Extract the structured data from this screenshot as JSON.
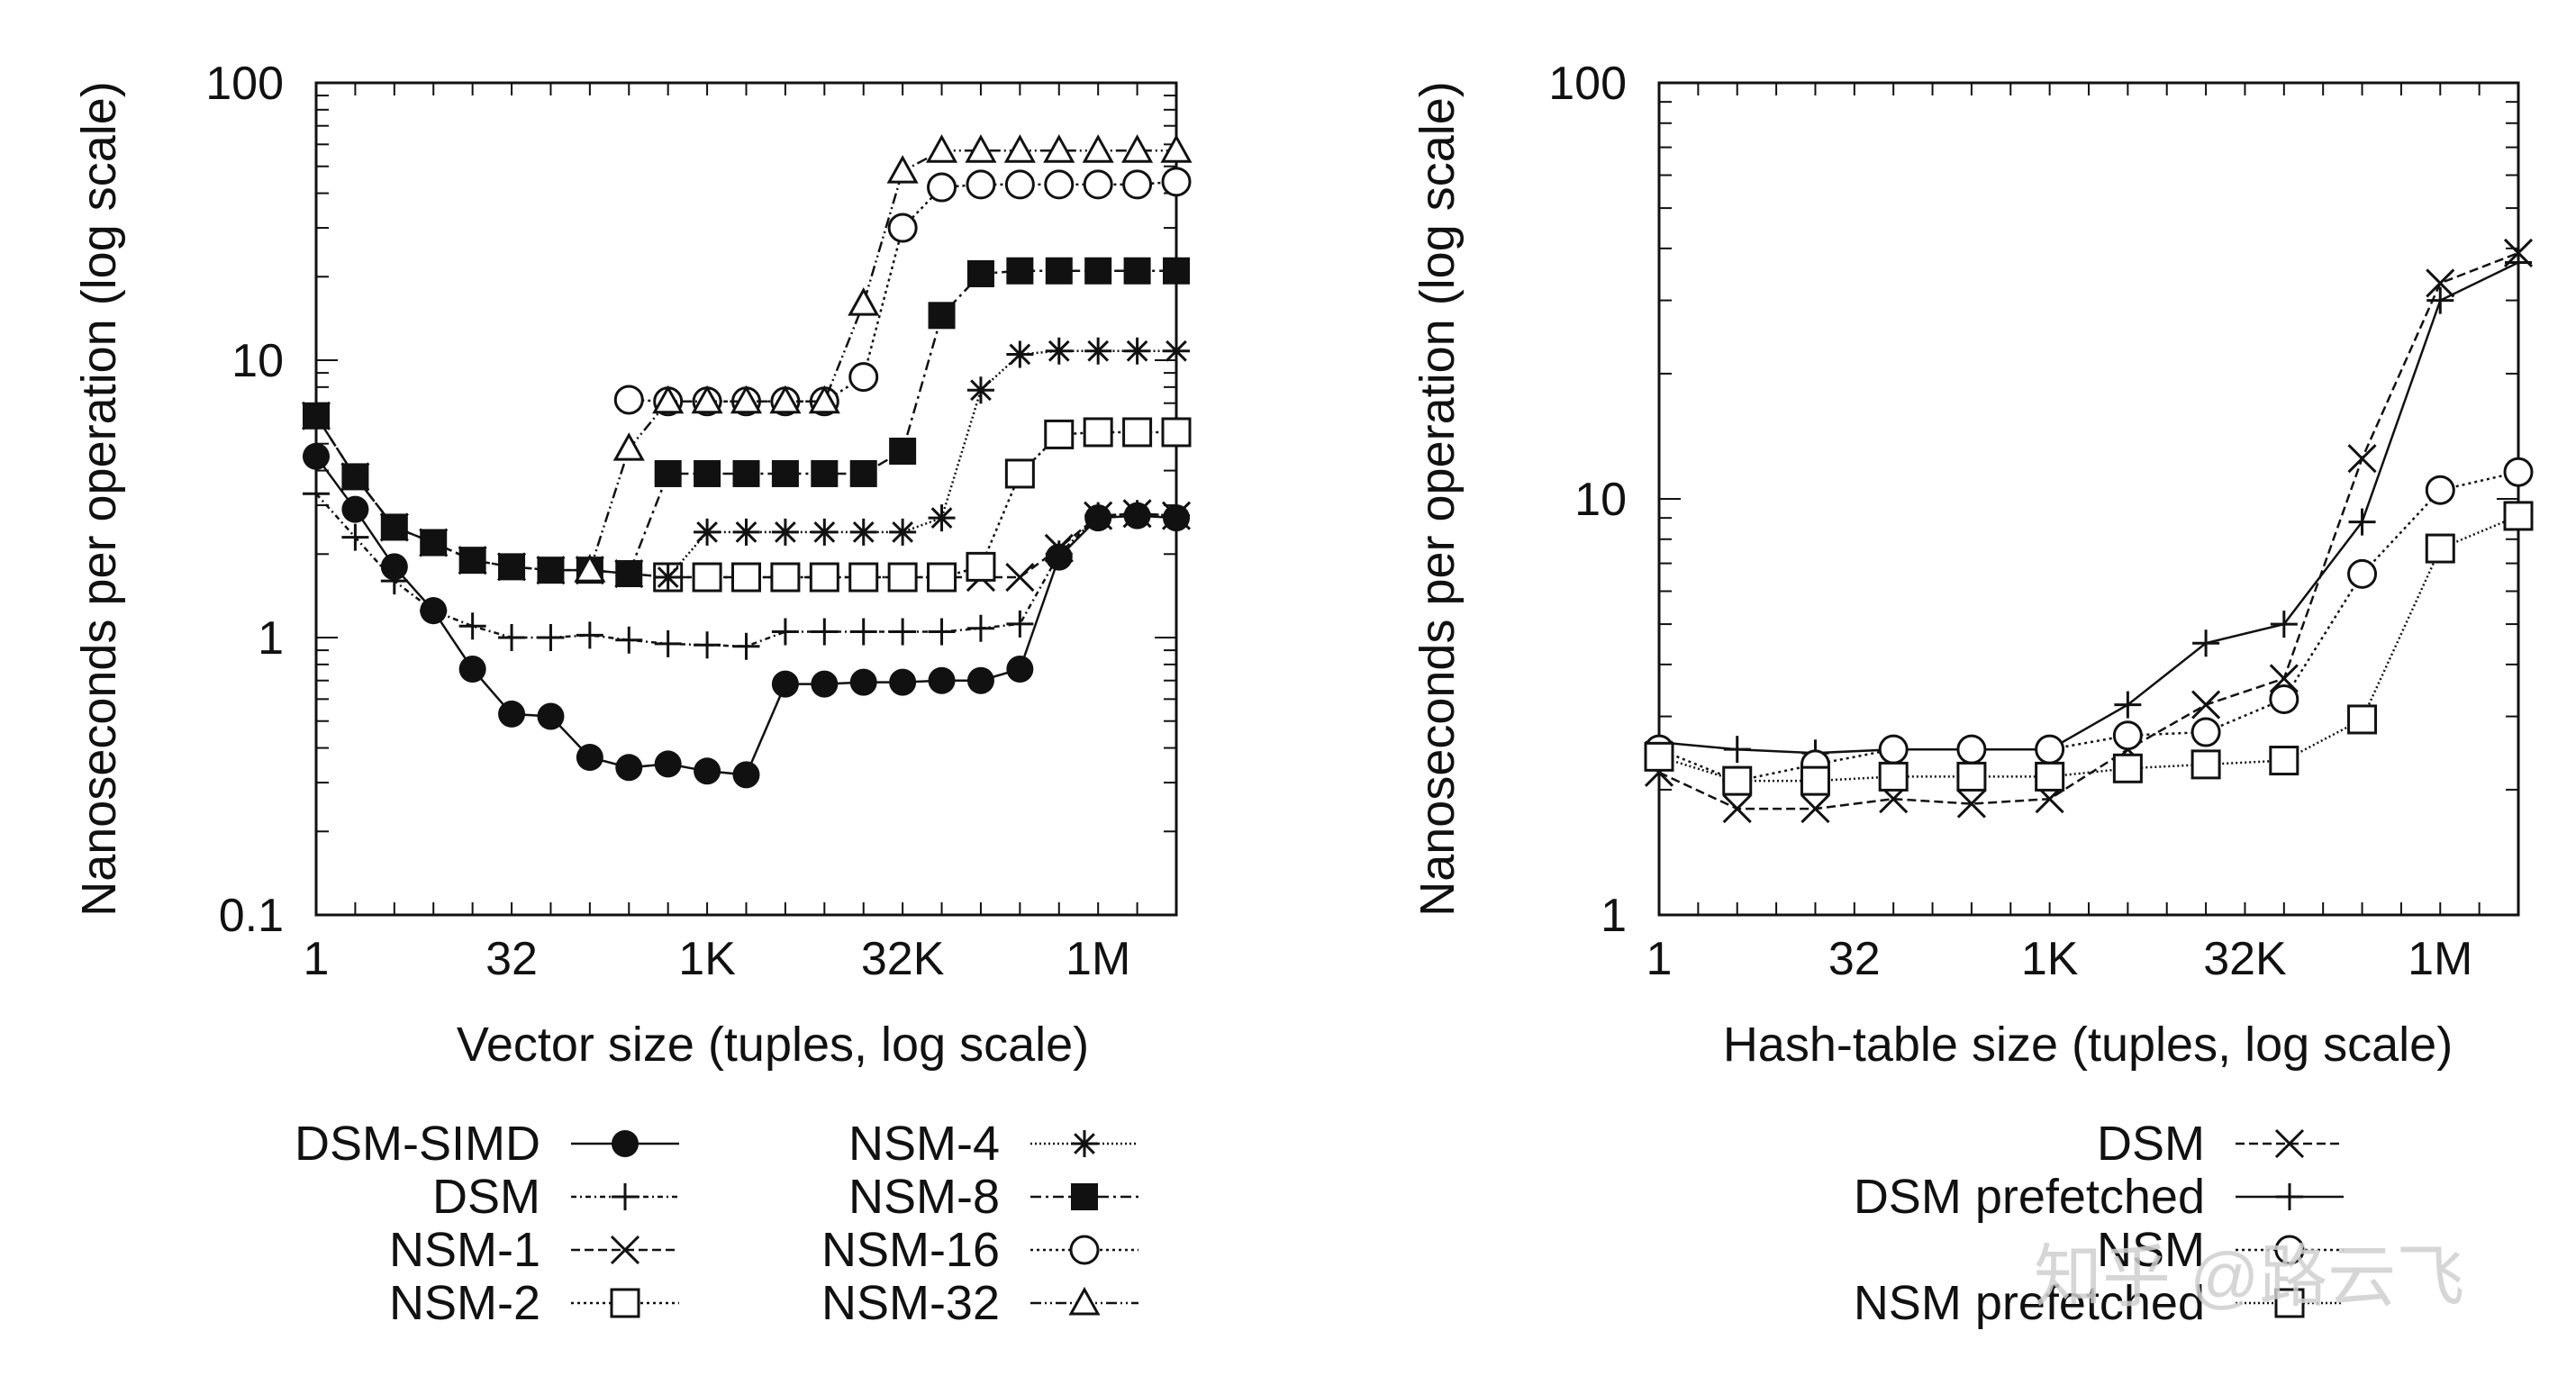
{
  "chart_data": [
    {
      "type": "line",
      "ylabel": "Nanoseconds per operation (log scale)",
      "xlabel": "Vector size (tuples, log scale)",
      "x_scale": "log2",
      "y_scale": "log10",
      "xlim_log2": [
        0,
        22
      ],
      "ylim": [
        0.1,
        100
      ],
      "x_ticks": [
        {
          "log2": 0,
          "label": "1"
        },
        {
          "log2": 5,
          "label": "32"
        },
        {
          "log2": 10,
          "label": "1K"
        },
        {
          "log2": 15,
          "label": "32K"
        },
        {
          "log2": 20,
          "label": "1M"
        }
      ],
      "y_ticks": [
        {
          "value": 0.1,
          "label": "0.1"
        },
        {
          "value": 1,
          "label": "1"
        },
        {
          "value": 10,
          "label": "10"
        },
        {
          "value": 100,
          "label": "100"
        }
      ],
      "series": [
        {
          "name": "DSM-SIMD",
          "marker": "filled-circle",
          "dash": "",
          "x_log2": [
            0,
            1,
            2,
            3,
            4,
            5,
            6,
            7,
            8,
            9,
            10,
            11,
            12,
            13,
            14,
            15,
            16,
            17,
            18,
            19,
            20,
            21,
            22
          ],
          "values": [
            4.5,
            2.9,
            1.8,
            1.25,
            0.77,
            0.53,
            0.52,
            0.37,
            0.34,
            0.35,
            0.33,
            0.32,
            0.68,
            0.68,
            0.69,
            0.69,
            0.7,
            0.7,
            0.77,
            1.95,
            2.7,
            2.75,
            2.7
          ]
        },
        {
          "name": "DSM",
          "marker": "plus",
          "dash": "6 4 2 4",
          "x_log2": [
            0,
            1,
            2,
            3,
            4,
            5,
            6,
            7,
            8,
            9,
            10,
            11,
            12,
            13,
            14,
            15,
            16,
            17,
            18,
            19,
            20,
            21,
            22
          ],
          "values": [
            3.3,
            2.3,
            1.6,
            1.25,
            1.1,
            1.0,
            1.0,
            1.02,
            0.98,
            0.95,
            0.94,
            0.93,
            1.05,
            1.05,
            1.05,
            1.05,
            1.05,
            1.08,
            1.12,
            2.0,
            2.75,
            2.8,
            2.75
          ]
        },
        {
          "name": "NSM-1",
          "marker": "x-cross",
          "dash": "10 5",
          "x_log2": [
            0,
            1,
            2,
            3,
            4,
            5,
            6,
            7,
            8,
            9,
            10,
            11,
            12,
            13,
            14,
            15,
            16,
            17,
            18,
            19,
            20,
            21,
            22
          ],
          "values": [
            6.3,
            3.8,
            2.5,
            2.2,
            1.9,
            1.8,
            1.75,
            1.75,
            1.7,
            1.65,
            1.65,
            1.65,
            1.65,
            1.65,
            1.65,
            1.65,
            1.65,
            1.65,
            1.65,
            2.1,
            2.75,
            2.8,
            2.75
          ]
        },
        {
          "name": "NSM-2",
          "marker": "open-square",
          "dash": "3 4",
          "x_log2": [
            9,
            10,
            11,
            12,
            13,
            14,
            15,
            16,
            17,
            18,
            19,
            20,
            21,
            22
          ],
          "values": [
            1.65,
            1.65,
            1.65,
            1.65,
            1.65,
            1.65,
            1.65,
            1.65,
            1.8,
            3.9,
            5.4,
            5.5,
            5.5,
            5.5
          ]
        },
        {
          "name": "NSM-4",
          "marker": "asterisk",
          "dash": "2 3",
          "x_log2": [
            9,
            10,
            11,
            12,
            13,
            14,
            15,
            16,
            17,
            18,
            19,
            20,
            21,
            22
          ],
          "values": [
            1.65,
            2.4,
            2.4,
            2.4,
            2.4,
            2.4,
            2.4,
            2.7,
            7.8,
            10.5,
            10.8,
            10.8,
            10.8,
            10.8
          ]
        },
        {
          "name": "NSM-8",
          "marker": "filled-square",
          "dash": "12 5 3 5",
          "x_log2": [
            0,
            1,
            2,
            3,
            4,
            5,
            6,
            7,
            8,
            9,
            10,
            11,
            12,
            13,
            14,
            15,
            16,
            17,
            18,
            19,
            20,
            21,
            22
          ],
          "values": [
            6.3,
            3.8,
            2.5,
            2.2,
            1.9,
            1.8,
            1.75,
            1.75,
            1.7,
            3.9,
            3.9,
            3.9,
            3.9,
            3.9,
            3.9,
            4.7,
            14.5,
            20.5,
            21,
            21,
            21,
            21,
            21
          ]
        },
        {
          "name": "NSM-16",
          "marker": "open-circle",
          "dash": "3 4",
          "x_log2": [
            8,
            9,
            10,
            11,
            12,
            13,
            14,
            15,
            16,
            17,
            18,
            19,
            20,
            21,
            22
          ],
          "values": [
            7.2,
            7.1,
            7.1,
            7.1,
            7.1,
            7.1,
            8.7,
            30,
            42,
            43,
            43,
            43,
            43,
            43,
            44
          ]
        },
        {
          "name": "NSM-32",
          "marker": "triangle",
          "dash": "12 4 2 4 2 4",
          "x_log2": [
            7,
            8,
            9,
            10,
            11,
            12,
            13,
            14,
            15,
            16,
            17,
            18,
            19,
            20,
            21,
            22
          ],
          "values": [
            1.75,
            4.8,
            7.1,
            7.1,
            7.1,
            7.1,
            7.1,
            16,
            48,
            57,
            57,
            57,
            57,
            57,
            57,
            57
          ]
        }
      ],
      "legend": {
        "placement": "below",
        "columns": 2
      }
    },
    {
      "type": "line",
      "ylabel": "Nanoseconds per operation (log scale)",
      "xlabel": "Hash-table size (tuples, log scale)",
      "x_scale": "log2",
      "y_scale": "log10",
      "xlim_log2": [
        0,
        22
      ],
      "ylim": [
        1,
        100
      ],
      "x_ticks": [
        {
          "log2": 0,
          "label": "1"
        },
        {
          "log2": 5,
          "label": "32"
        },
        {
          "log2": 10,
          "label": "1K"
        },
        {
          "log2": 15,
          "label": "32K"
        },
        {
          "log2": 20,
          "label": "1M"
        }
      ],
      "y_ticks": [
        {
          "value": 1,
          "label": "1"
        },
        {
          "value": 10,
          "label": "10"
        },
        {
          "value": 100,
          "label": "100"
        }
      ],
      "series": [
        {
          "name": "DSM",
          "marker": "x-cross",
          "dash": "10 5",
          "x_log2": [
            0,
            2,
            4,
            6,
            8,
            10,
            12,
            14,
            16,
            18,
            20,
            22
          ],
          "values": [
            2.2,
            1.8,
            1.8,
            1.9,
            1.85,
            1.9,
            2.5,
            3.2,
            3.7,
            12.5,
            33,
            39
          ]
        },
        {
          "name": "DSM prefetched",
          "marker": "plus",
          "dash": "",
          "x_log2": [
            0,
            2,
            4,
            6,
            8,
            10,
            12,
            14,
            16,
            18,
            20,
            22
          ],
          "values": [
            2.6,
            2.5,
            2.45,
            2.5,
            2.5,
            2.5,
            3.2,
            4.5,
            5.0,
            8.8,
            30,
            37
          ]
        },
        {
          "name": "NSM",
          "marker": "open-circle",
          "dash": "3 4",
          "x_log2": [
            0,
            2,
            4,
            6,
            8,
            10,
            12,
            14,
            16,
            18,
            20,
            22
          ],
          "values": [
            2.5,
            2.1,
            2.3,
            2.5,
            2.5,
            2.5,
            2.7,
            2.75,
            3.3,
            6.6,
            10.5,
            11.6
          ]
        },
        {
          "name": "NSM prefetched",
          "marker": "open-square",
          "dash": "2 3",
          "x_log2": [
            0,
            2,
            4,
            6,
            8,
            10,
            12,
            14,
            16,
            18,
            20,
            22
          ],
          "values": [
            2.4,
            2.1,
            2.1,
            2.15,
            2.15,
            2.15,
            2.25,
            2.3,
            2.35,
            2.95,
            7.6,
            9.1
          ]
        }
      ],
      "legend": {
        "placement": "below-right",
        "columns": 1
      }
    }
  ],
  "watermark": {
    "text": "知乎 @路云飞"
  }
}
